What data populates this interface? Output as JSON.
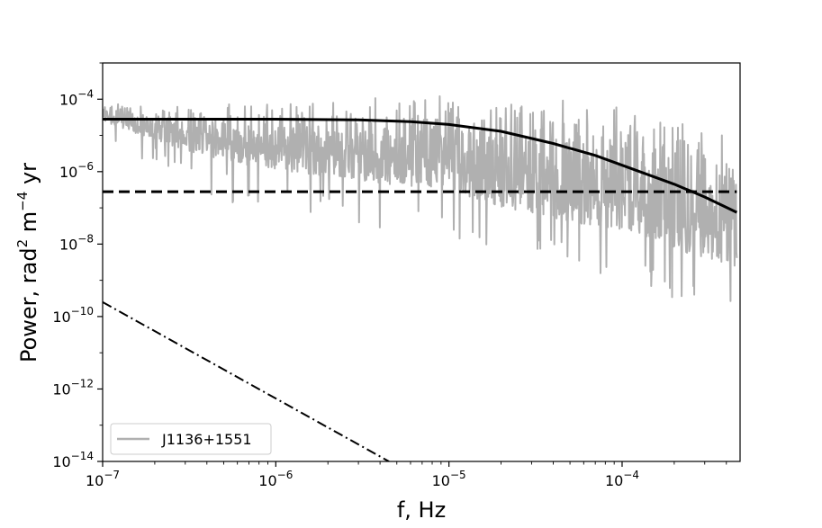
{
  "chart_data": {
    "type": "line",
    "title": "",
    "xlabel": "f, Hz",
    "ylabel": {
      "base": "Power, rad",
      "sup1": "2",
      "mid": " m",
      "sup2": "−4",
      "end": " yr"
    },
    "xscale": "log",
    "yscale": "log",
    "xlim": [
      1e-07,
      0.00048
    ],
    "ylim": [
      1e-14,
      0.001
    ],
    "grid": false,
    "legend": {
      "placement": "lower-left",
      "entries": [
        "J1136+1551"
      ]
    },
    "x_ticks": [
      {
        "value": 1e-07,
        "base": "10",
        "exp": "−7"
      },
      {
        "value": 1e-06,
        "base": "10",
        "exp": "−6"
      },
      {
        "value": 1e-05,
        "base": "10",
        "exp": "−5"
      },
      {
        "value": 0.0001,
        "base": "10",
        "exp": "−4"
      }
    ],
    "y_ticks": [
      {
        "value": 1e-14,
        "base": "10",
        "exp": "−14"
      },
      {
        "value": 1e-12,
        "base": "10",
        "exp": "−12"
      },
      {
        "value": 1e-10,
        "base": "10",
        "exp": "−10"
      },
      {
        "value": 1e-08,
        "base": "10",
        "exp": "−8"
      },
      {
        "value": 1e-06,
        "base": "10",
        "exp": "−6"
      },
      {
        "value": 0.0001,
        "base": "10",
        "exp": "−4"
      }
    ],
    "series": [
      {
        "name": "J1136+1551",
        "style": "solid-gray",
        "color": "#b0b0b0",
        "envelope_x": [
          1e-07,
          2e-07,
          5e-07,
          1e-06,
          2e-06,
          5e-06,
          1e-05,
          2e-05,
          5e-05,
          0.0001,
          0.0002,
          0.0003,
          0.00046
        ],
        "envelope_upper": [
          0.0001,
          6e-05,
          8e-05,
          0.0001,
          0.00013,
          0.00015,
          0.00015,
          0.00015,
          0.00015,
          0.00011,
          6e-05,
          2e-05,
          7e-06
        ],
        "envelope_lower": [
          2e-05,
          5e-06,
          1e-06,
          5e-07,
          3e-07,
          1.5e-07,
          1e-07,
          3e-08,
          1e-08,
          5e-09,
          1.5e-09,
          8e-10,
          5e-10
        ]
      },
      {
        "style": "solid-black",
        "color": "#000000",
        "x": [
          1e-07,
          3e-07,
          1e-06,
          3e-06,
          6e-06,
          1e-05,
          2e-05,
          4e-05,
          7e-05,
          0.0001,
          0.0002,
          0.0003,
          0.00046
        ],
        "y": [
          2.8e-05,
          2.8e-05,
          2.8e-05,
          2.7e-05,
          2.4e-05,
          2e-05,
          1.3e-05,
          6e-06,
          2.8e-06,
          1.5e-06,
          4.5e-07,
          2e-07,
          7.5e-08
        ]
      },
      {
        "style": "dashed-black",
        "color": "#000000",
        "x": [
          1e-07,
          0.00046
        ],
        "y": [
          2.8e-07,
          2.8e-07
        ]
      },
      {
        "style": "dashdot-black",
        "color": "#000000",
        "x": [
          1e-07,
          4.5e-06
        ],
        "y": [
          2.5e-10,
          1e-14
        ]
      }
    ]
  }
}
